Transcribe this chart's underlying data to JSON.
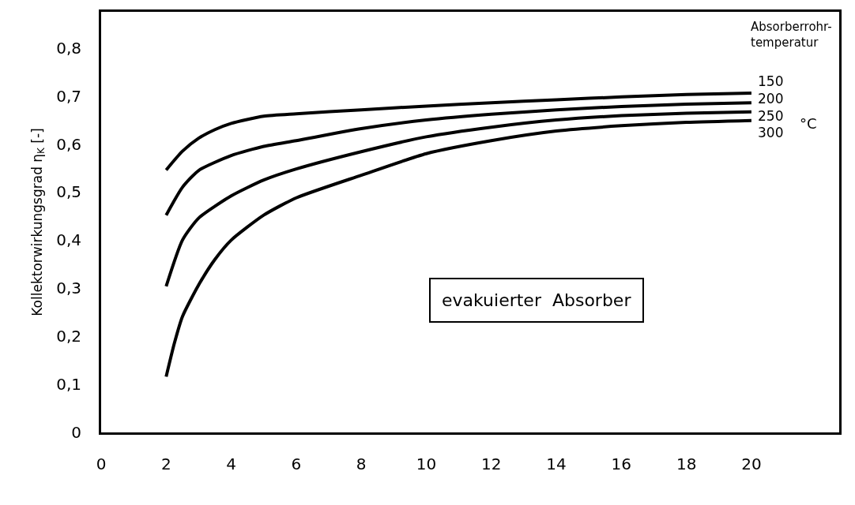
{
  "chart_data": {
    "type": "line",
    "ylabel": "Kollektorwirkungsgrad η$_{K}$ [-]",
    "legend_title": "Absorberrohr-\ntemperatur",
    "annotations": [
      "°C",
      "evakuierter  Absorber"
    ],
    "series": [
      {
        "name": "150",
        "color": "#000000",
        "x": [
          2,
          2.5,
          3,
          3.5,
          4,
          5,
          6,
          8,
          10,
          12,
          14,
          16,
          18,
          20
        ],
        "values": [
          0.546,
          0.585,
          0.612,
          0.63,
          0.643,
          0.658,
          0.663,
          0.671,
          0.679,
          0.686,
          0.692,
          0.698,
          0.703,
          0.706
        ]
      },
      {
        "name": "200",
        "color": "#000000",
        "x": [
          2,
          2.5,
          3,
          4,
          5,
          6,
          8,
          10,
          12,
          14,
          16,
          18,
          20
        ],
        "values": [
          0.452,
          0.51,
          0.545,
          0.576,
          0.595,
          0.607,
          0.632,
          0.65,
          0.662,
          0.671,
          0.678,
          0.683,
          0.686
        ]
      },
      {
        "name": "250",
        "color": "#000000",
        "x": [
          2,
          2.5,
          3,
          4,
          5,
          6,
          8,
          10,
          12,
          14,
          16,
          18,
          20
        ],
        "values": [
          0.304,
          0.4,
          0.446,
          0.492,
          0.525,
          0.548,
          0.584,
          0.615,
          0.635,
          0.65,
          0.659,
          0.664,
          0.667
        ]
      },
      {
        "name": "300",
        "color": "#000000",
        "x": [
          2,
          2.25,
          2.5,
          3,
          3.5,
          4,
          5,
          6,
          8,
          10,
          12,
          14,
          16,
          18,
          20
        ],
        "values": [
          0.116,
          0.185,
          0.241,
          0.307,
          0.36,
          0.4,
          0.452,
          0.488,
          0.535,
          0.58,
          0.607,
          0.627,
          0.638,
          0.645,
          0.649
        ]
      }
    ],
    "xlim": [
      0,
      22.7
    ],
    "ylim": [
      0,
      0.875
    ],
    "xticks": [
      0,
      2,
      4,
      6,
      8,
      10,
      12,
      14,
      16,
      18,
      20
    ],
    "yticks": [
      0,
      {
        "value": 0.1,
        "label": "0,1"
      },
      {
        "value": 0.2,
        "label": "0,2"
      },
      {
        "value": 0.3,
        "label": "0,3"
      },
      {
        "value": 0.4,
        "label": "0,4"
      },
      {
        "value": 0.5,
        "label": "0,5"
      },
      {
        "value": 0.6,
        "label": "0,6"
      },
      {
        "value": 0.7,
        "label": "0,7"
      },
      {
        "value": 0.8,
        "label": "0,8"
      }
    ],
    "grid": false,
    "legend": false,
    "marker": "none",
    "line_style": "solid"
  }
}
